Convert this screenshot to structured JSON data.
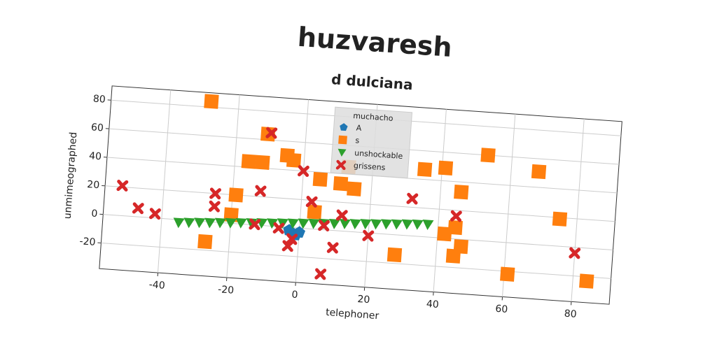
{
  "chart_data": {
    "type": "scatter",
    "title": "huzvaresh",
    "subtitle": "d dulciana",
    "x_label": "telephoner",
    "y_label": "unmimeographed",
    "legend_title": "muchacho",
    "legend_position": "upper center",
    "grid": true,
    "xlim": [
      -57,
      91
    ],
    "ylim": [
      -38,
      90
    ],
    "xticks": [
      -40,
      -20,
      0,
      20,
      40,
      60,
      80
    ],
    "yticks": [
      -20,
      0,
      20,
      40,
      60,
      80
    ],
    "series": [
      {
        "name": "A",
        "color": "#1f77b4",
        "marker": "pentagon",
        "x": [
          -3,
          -1,
          0
        ],
        "values": [
          -2,
          -5,
          -3
        ]
      },
      {
        "name": "s",
        "color": "#ff7f0e",
        "marker": "square",
        "x": [
          -28,
          -11,
          -16,
          -12,
          -5,
          -3,
          -19,
          -27,
          5,
          11,
          15,
          13,
          28,
          35,
          41,
          53,
          46,
          68,
          75,
          61,
          84,
          45,
          42,
          47,
          45,
          4,
          -20
        ],
        "values": [
          84,
          64,
          44,
          44,
          50,
          47,
          20,
          -14,
          35,
          33,
          30,
          45,
          -14,
          47,
          49,
          60,
          33,
          51,
          19,
          -22,
          -23,
          8,
          3,
          -5,
          -12,
          12,
          6
        ]
      },
      {
        "name": "unshockable",
        "color": "#2ca02c",
        "marker": "triangle-down",
        "x": [
          -35,
          -32,
          -29,
          -26,
          -23,
          -20,
          -17,
          -14,
          -11,
          -8,
          -5,
          -2,
          1,
          4,
          7,
          10,
          13,
          16,
          19,
          22,
          25,
          28,
          31,
          34,
          37
        ],
        "values": [
          -2,
          -1.5,
          -1,
          -0.6,
          -0.1,
          0.3,
          0.8,
          1.2,
          1.7,
          2.1,
          2.6,
          3,
          3.5,
          3.9,
          4.4,
          4.8,
          5.3,
          5.7,
          6.2,
          6.6,
          7.1,
          7.5,
          8,
          8.4,
          8.8
        ]
      },
      {
        "name": "grissens",
        "color": "#d62728",
        "marker": "x",
        "x": [
          -52,
          -47,
          -42,
          -25,
          -25,
          -12,
          -10,
          0,
          3,
          12,
          32,
          45,
          -13,
          -6,
          -2,
          -3,
          7,
          20,
          10,
          7,
          80
        ],
        "values": [
          21,
          6,
          3,
          20,
          11,
          24,
          65,
          40,
          19,
          11,
          26,
          16,
          0.5,
          -1,
          -8,
          -13,
          3,
          -2,
          -12,
          -31,
          -4
        ]
      }
    ]
  }
}
